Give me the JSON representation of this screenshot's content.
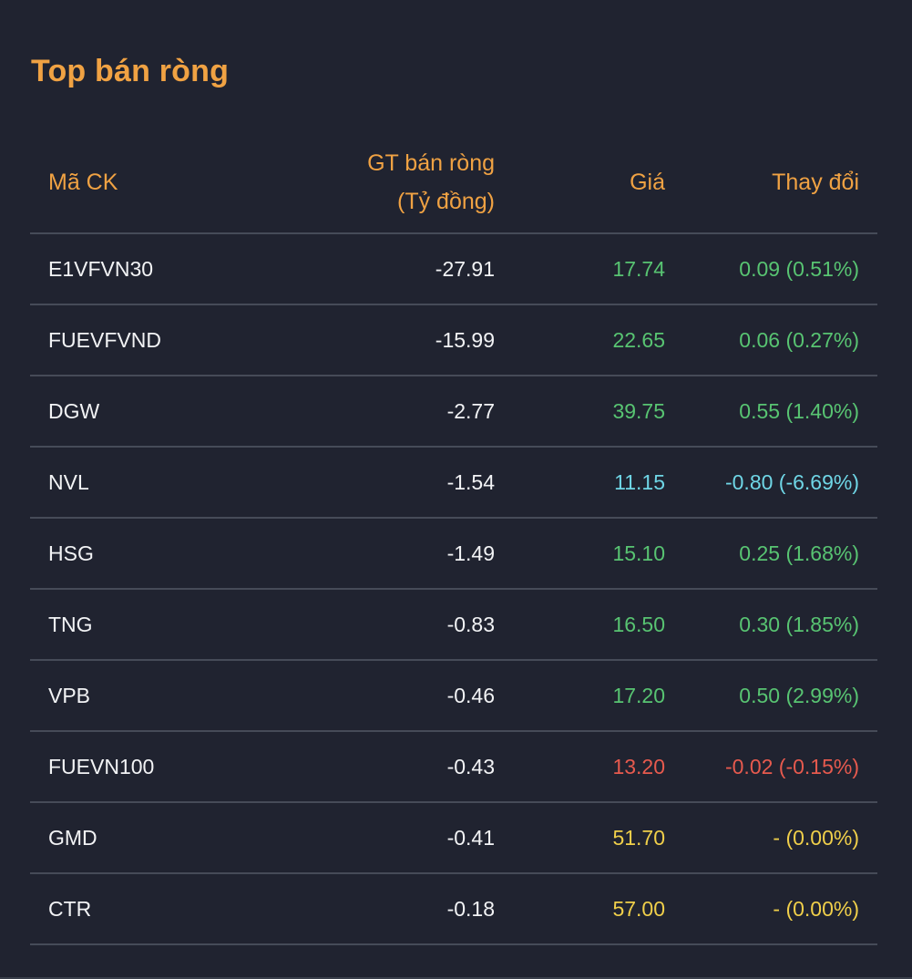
{
  "title": "Top bán ròng",
  "headers": {
    "code": "Mã CK",
    "value_line1": "GT bán ròng",
    "value_line2": "(Tỷ đồng)",
    "price": "Giá",
    "change": "Thay đổi"
  },
  "colors": {
    "accent": "#f0a243",
    "up": "#58c472",
    "down": "#e75a4e",
    "floor": "#6fd6e6",
    "reference": "#f0cf4a",
    "background": "#202330"
  },
  "rows": [
    {
      "code": "E1VFVN30",
      "value": "-27.91",
      "price": "17.74",
      "change": "0.09 (0.51%)",
      "status": "up"
    },
    {
      "code": "FUEVFVND",
      "value": "-15.99",
      "price": "22.65",
      "change": "0.06 (0.27%)",
      "status": "up"
    },
    {
      "code": "DGW",
      "value": "-2.77",
      "price": "39.75",
      "change": "0.55 (1.40%)",
      "status": "up"
    },
    {
      "code": "NVL",
      "value": "-1.54",
      "price": "11.15",
      "change": "-0.80 (-6.69%)",
      "status": "floor"
    },
    {
      "code": "HSG",
      "value": "-1.49",
      "price": "15.10",
      "change": "0.25 (1.68%)",
      "status": "up"
    },
    {
      "code": "TNG",
      "value": "-0.83",
      "price": "16.50",
      "change": "0.30 (1.85%)",
      "status": "up"
    },
    {
      "code": "VPB",
      "value": "-0.46",
      "price": "17.20",
      "change": "0.50 (2.99%)",
      "status": "up"
    },
    {
      "code": "FUEVN100",
      "value": "-0.43",
      "price": "13.20",
      "change": "-0.02 (-0.15%)",
      "status": "down"
    },
    {
      "code": "GMD",
      "value": "-0.41",
      "price": "51.70",
      "change": "- (0.00%)",
      "status": "ref"
    },
    {
      "code": "CTR",
      "value": "-0.18",
      "price": "57.00",
      "change": "- (0.00%)",
      "status": "ref"
    }
  ]
}
